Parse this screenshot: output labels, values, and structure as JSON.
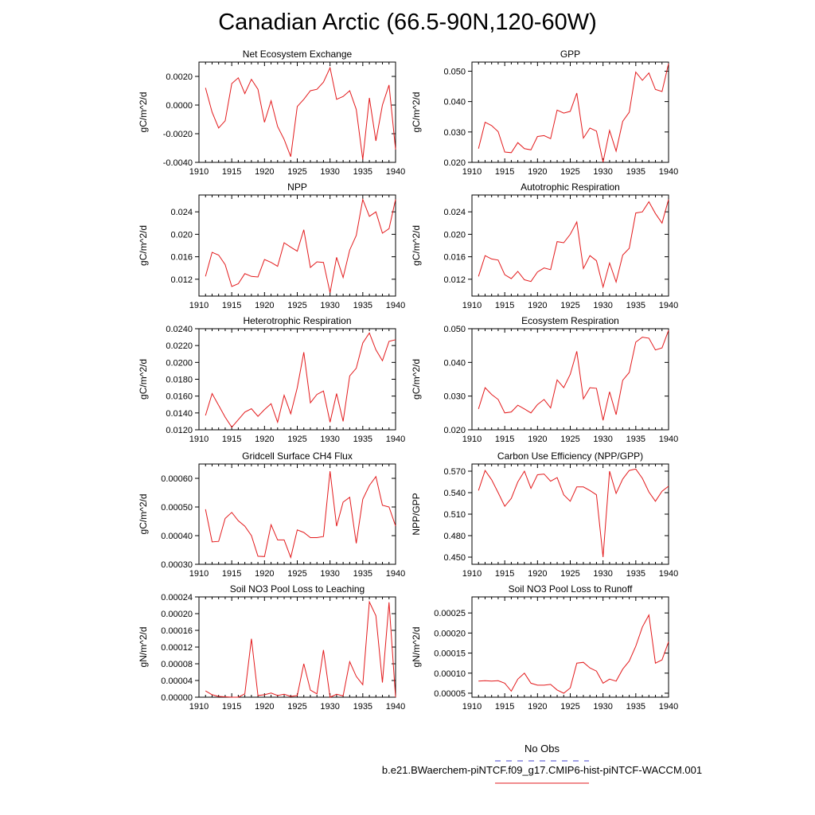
{
  "title": "Canadian Arctic (66.5-90N,120-60W)",
  "legend": {
    "items": [
      {
        "label": "No Obs",
        "color": "#4444cc",
        "style": "dashed"
      },
      {
        "label": "b.e21.BWaerchem-piNTCF.f09_g17.CMIP6-hist-piNTCF-WACCM.001",
        "color": "#e31a1c",
        "style": "solid"
      }
    ]
  },
  "chart_data": [
    {
      "type": "line",
      "title": "Net Ecosystem Exchange",
      "ylabel": "gC/m^2/d",
      "xlim": [
        1910,
        1940
      ],
      "ylim": [
        -0.004,
        0.003
      ],
      "xticks": [
        1910,
        1915,
        1920,
        1925,
        1930,
        1935,
        1940
      ],
      "yticks": [
        -0.004,
        -0.002,
        0.0,
        0.002
      ],
      "ytick_labels": [
        "-0.0040",
        "-0.0020",
        "0.0000",
        "0.0020"
      ],
      "x": [
        1911,
        1912,
        1913,
        1914,
        1915,
        1916,
        1917,
        1918,
        1919,
        1920,
        1921,
        1922,
        1923,
        1924,
        1925,
        1926,
        1927,
        1928,
        1929,
        1930,
        1931,
        1932,
        1933,
        1934,
        1935,
        1936,
        1937,
        1938,
        1939,
        1940
      ],
      "series": [
        {
          "values": [
            0.0012,
            -0.0005,
            -0.0016,
            -0.0011,
            0.0015,
            0.0019,
            0.0008,
            0.0018,
            0.0011,
            -0.0012,
            0.0003,
            -0.0015,
            -0.0024,
            -0.0036,
            -0.0001,
            0.0004,
            0.001,
            0.0011,
            0.0016,
            0.0026,
            0.0004,
            0.0006,
            0.001,
            -0.0003,
            -0.0038,
            0.0005,
            -0.0025,
            0.0,
            0.0014,
            -0.0031
          ]
        }
      ]
    },
    {
      "type": "line",
      "title": "GPP",
      "ylabel": "gC/m^2/d",
      "xlim": [
        1910,
        1940
      ],
      "ylim": [
        0.02,
        0.053
      ],
      "xticks": [
        1910,
        1915,
        1920,
        1925,
        1930,
        1935,
        1940
      ],
      "yticks": [
        0.02,
        0.03,
        0.04,
        0.05
      ],
      "ytick_labels": [
        "0.020",
        "0.030",
        "0.040",
        "0.050"
      ],
      "x": [
        1911,
        1912,
        1913,
        1914,
        1915,
        1916,
        1917,
        1918,
        1919,
        1920,
        1921,
        1922,
        1923,
        1924,
        1925,
        1926,
        1927,
        1928,
        1929,
        1930,
        1931,
        1932,
        1933,
        1934,
        1935,
        1936,
        1937,
        1938,
        1939,
        1940
      ],
      "series": [
        {
          "values": [
            0.0245,
            0.0332,
            0.0321,
            0.0301,
            0.0234,
            0.0232,
            0.0265,
            0.0245,
            0.0241,
            0.0285,
            0.0288,
            0.0278,
            0.0372,
            0.0362,
            0.0368,
            0.0428,
            0.028,
            0.0313,
            0.0303,
            0.0201,
            0.0305,
            0.0237,
            0.0335,
            0.0365,
            0.0497,
            0.047,
            0.0494,
            0.044,
            0.0433,
            0.0525
          ]
        }
      ]
    },
    {
      "type": "line",
      "title": "NPP",
      "ylabel": "gC/m^2/d",
      "xlim": [
        1910,
        1940
      ],
      "ylim": [
        0.009,
        0.027
      ],
      "xticks": [
        1910,
        1915,
        1920,
        1925,
        1930,
        1935,
        1940
      ],
      "yticks": [
        0.012,
        0.016,
        0.02,
        0.024
      ],
      "ytick_labels": [
        "0.012",
        "0.016",
        "0.020",
        "0.024"
      ],
      "x": [
        1911,
        1912,
        1913,
        1914,
        1915,
        1916,
        1917,
        1918,
        1919,
        1920,
        1921,
        1922,
        1923,
        1924,
        1925,
        1926,
        1927,
        1928,
        1929,
        1930,
        1931,
        1932,
        1933,
        1934,
        1935,
        1936,
        1937,
        1938,
        1939,
        1940
      ],
      "series": [
        {
          "values": [
            0.0125,
            0.0168,
            0.0163,
            0.0146,
            0.0107,
            0.0112,
            0.013,
            0.0125,
            0.0124,
            0.0155,
            0.015,
            0.0143,
            0.0185,
            0.0177,
            0.017,
            0.0208,
            0.0141,
            0.0151,
            0.015,
            0.0096,
            0.0159,
            0.0123,
            0.0172,
            0.0198,
            0.0262,
            0.0232,
            0.024,
            0.0202,
            0.021,
            0.0262
          ]
        }
      ]
    },
    {
      "type": "line",
      "title": "Autotrophic Respiration",
      "ylabel": "gC/m^2/d",
      "xlim": [
        1910,
        1940
      ],
      "ylim": [
        0.009,
        0.027
      ],
      "xticks": [
        1910,
        1915,
        1920,
        1925,
        1930,
        1935,
        1940
      ],
      "yticks": [
        0.012,
        0.016,
        0.02,
        0.024
      ],
      "ytick_labels": [
        "0.012",
        "0.016",
        "0.020",
        "0.024"
      ],
      "x": [
        1911,
        1912,
        1913,
        1914,
        1915,
        1916,
        1917,
        1918,
        1919,
        1920,
        1921,
        1922,
        1923,
        1924,
        1925,
        1926,
        1927,
        1928,
        1929,
        1930,
        1931,
        1932,
        1933,
        1934,
        1935,
        1936,
        1937,
        1938,
        1939,
        1940
      ],
      "series": [
        {
          "values": [
            0.0125,
            0.0162,
            0.0156,
            0.0154,
            0.0128,
            0.0121,
            0.0134,
            0.0119,
            0.0116,
            0.0133,
            0.014,
            0.0137,
            0.0187,
            0.0185,
            0.02,
            0.0222,
            0.0139,
            0.0162,
            0.0153,
            0.0106,
            0.0149,
            0.0115,
            0.0163,
            0.0175,
            0.0238,
            0.024,
            0.0258,
            0.0237,
            0.022,
            0.0262
          ]
        }
      ]
    },
    {
      "type": "line",
      "title": "Heterotrophic Respiration",
      "ylabel": "gC/m^2/d",
      "xlim": [
        1910,
        1940
      ],
      "ylim": [
        0.012,
        0.024
      ],
      "xticks": [
        1910,
        1915,
        1920,
        1925,
        1930,
        1935,
        1940
      ],
      "yticks": [
        0.012,
        0.014,
        0.016,
        0.018,
        0.02,
        0.022,
        0.024
      ],
      "ytick_labels": [
        "0.0120",
        "0.0140",
        "0.0160",
        "0.0180",
        "0.0200",
        "0.0220",
        "0.0240"
      ],
      "x": [
        1911,
        1912,
        1913,
        1914,
        1915,
        1916,
        1917,
        1918,
        1919,
        1920,
        1921,
        1922,
        1923,
        1924,
        1925,
        1926,
        1927,
        1928,
        1929,
        1930,
        1931,
        1932,
        1933,
        1934,
        1935,
        1936,
        1937,
        1938,
        1939,
        1940
      ],
      "series": [
        {
          "values": [
            0.0137,
            0.0163,
            0.0149,
            0.0135,
            0.0123,
            0.0132,
            0.0141,
            0.0145,
            0.0136,
            0.0144,
            0.0151,
            0.0129,
            0.0161,
            0.0139,
            0.017,
            0.0212,
            0.0152,
            0.0162,
            0.0166,
            0.0129,
            0.0163,
            0.013,
            0.0184,
            0.0193,
            0.0223,
            0.0235,
            0.0215,
            0.0202,
            0.0225,
            0.0227
          ]
        }
      ]
    },
    {
      "type": "line",
      "title": "Ecosystem Respiration",
      "ylabel": "gC/m^2/d",
      "xlim": [
        1910,
        1940
      ],
      "ylim": [
        0.02,
        0.05
      ],
      "xticks": [
        1910,
        1915,
        1920,
        1925,
        1930,
        1935,
        1940
      ],
      "yticks": [
        0.02,
        0.03,
        0.04,
        0.05
      ],
      "ytick_labels": [
        "0.020",
        "0.030",
        "0.040",
        "0.050"
      ],
      "x": [
        1911,
        1912,
        1913,
        1914,
        1915,
        1916,
        1917,
        1918,
        1919,
        1920,
        1921,
        1922,
        1923,
        1924,
        1925,
        1926,
        1927,
        1928,
        1929,
        1930,
        1931,
        1932,
        1933,
        1934,
        1935,
        1936,
        1937,
        1938,
        1939,
        1940
      ],
      "series": [
        {
          "values": [
            0.0262,
            0.0325,
            0.0305,
            0.029,
            0.025,
            0.0253,
            0.0273,
            0.0262,
            0.025,
            0.0275,
            0.029,
            0.0265,
            0.0348,
            0.0325,
            0.0365,
            0.0433,
            0.0292,
            0.0325,
            0.0323,
            0.0228,
            0.0313,
            0.0245,
            0.0347,
            0.037,
            0.046,
            0.0475,
            0.0472,
            0.0437,
            0.0443,
            0.0495
          ]
        }
      ]
    },
    {
      "type": "line",
      "title": "Gridcell Surface CH4 Flux",
      "ylabel": "gC/m^2/d",
      "xlim": [
        1910,
        1940
      ],
      "ylim": [
        0.0003,
        0.00065
      ],
      "xticks": [
        1910,
        1915,
        1920,
        1925,
        1930,
        1935,
        1940
      ],
      "yticks": [
        0.0003,
        0.0004,
        0.0005,
        0.0006
      ],
      "ytick_labels": [
        "0.00030",
        "0.00040",
        "0.00050",
        "0.00060"
      ],
      "x": [
        1911,
        1912,
        1913,
        1914,
        1915,
        1916,
        1917,
        1918,
        1919,
        1920,
        1921,
        1922,
        1923,
        1924,
        1925,
        1926,
        1927,
        1928,
        1929,
        1930,
        1931,
        1932,
        1933,
        1934,
        1935,
        1936,
        1937,
        1938,
        1939,
        1940
      ],
      "series": [
        {
          "values": [
            0.000492,
            0.000378,
            0.00038,
            0.00046,
            0.000481,
            0.000452,
            0.000433,
            0.0004,
            0.000328,
            0.000327,
            0.000438,
            0.000385,
            0.000385,
            0.000324,
            0.00042,
            0.000411,
            0.000393,
            0.000393,
            0.000397,
            0.000625,
            0.000433,
            0.000517,
            0.000534,
            0.000373,
            0.000527,
            0.000575,
            0.000606,
            0.000506,
            0.0005,
            0.000434
          ]
        }
      ]
    },
    {
      "type": "line",
      "title": "Carbon Use Efficiency (NPP/GPP)",
      "ylabel": "NPP/GPP",
      "xlim": [
        1910,
        1940
      ],
      "ylim": [
        0.44,
        0.58
      ],
      "xticks": [
        1910,
        1915,
        1920,
        1925,
        1930,
        1935,
        1940
      ],
      "yticks": [
        0.45,
        0.48,
        0.51,
        0.54,
        0.57
      ],
      "ytick_labels": [
        "0.450",
        "0.480",
        "0.510",
        "0.540",
        "0.570"
      ],
      "x": [
        1911,
        1912,
        1913,
        1914,
        1915,
        1916,
        1917,
        1918,
        1919,
        1920,
        1921,
        1922,
        1923,
        1924,
        1925,
        1926,
        1927,
        1928,
        1929,
        1930,
        1931,
        1932,
        1933,
        1934,
        1935,
        1936,
        1937,
        1938,
        1939,
        1940
      ],
      "series": [
        {
          "values": [
            0.543,
            0.571,
            0.558,
            0.54,
            0.521,
            0.532,
            0.555,
            0.57,
            0.546,
            0.565,
            0.566,
            0.556,
            0.561,
            0.537,
            0.528,
            0.548,
            0.548,
            0.543,
            0.537,
            0.45,
            0.57,
            0.539,
            0.559,
            0.571,
            0.573,
            0.56,
            0.541,
            0.528,
            0.542,
            0.549
          ]
        }
      ]
    },
    {
      "type": "line",
      "title": "Soil NO3 Pool Loss to Leaching",
      "ylabel": "gN/m^2/d",
      "xlim": [
        1910,
        1940
      ],
      "ylim": [
        0.0,
        0.00024
      ],
      "xticks": [
        1910,
        1915,
        1920,
        1925,
        1930,
        1935,
        1940
      ],
      "yticks": [
        0.0,
        4e-05,
        8e-05,
        0.00012,
        0.00016,
        0.0002,
        0.00024
      ],
      "ytick_labels": [
        "0.00000",
        "0.00004",
        "0.00008",
        "0.00012",
        "0.00016",
        "0.00020",
        "0.00024"
      ],
      "x": [
        1911,
        1912,
        1913,
        1914,
        1915,
        1916,
        1917,
        1918,
        1919,
        1920,
        1921,
        1922,
        1923,
        1924,
        1925,
        1926,
        1927,
        1928,
        1929,
        1930,
        1931,
        1932,
        1933,
        1934,
        1935,
        1936,
        1937,
        1938,
        1939,
        1940
      ],
      "series": [
        {
          "values": [
            1.5e-05,
            6e-06,
            2e-06,
            1e-06,
            0.0,
            0.0,
            8e-06,
            0.00014,
            4e-06,
            6e-06,
            1e-05,
            4e-06,
            7e-06,
            2e-06,
            4e-06,
            8e-05,
            1.7e-05,
            8e-06,
            0.000113,
            0.0,
            7e-06,
            3e-06,
            8.5e-05,
            5e-05,
            3e-05,
            0.000228,
            0.000195,
            3.5e-05,
            0.000227,
            0.0
          ]
        }
      ]
    },
    {
      "type": "line",
      "title": "Soil NO3 Pool Loss to Runoff",
      "ylabel": "gN/m^2/d",
      "xlim": [
        1910,
        1940
      ],
      "ylim": [
        4e-05,
        0.00029
      ],
      "xticks": [
        1910,
        1915,
        1920,
        1925,
        1930,
        1935,
        1940
      ],
      "yticks": [
        5e-05,
        0.0001,
        0.00015,
        0.0002,
        0.00025
      ],
      "ytick_labels": [
        "0.00005",
        "0.00010",
        "0.00015",
        "0.00020",
        "0.00025"
      ],
      "x": [
        1911,
        1912,
        1913,
        1914,
        1915,
        1916,
        1917,
        1918,
        1919,
        1920,
        1921,
        1922,
        1923,
        1924,
        1925,
        1926,
        1927,
        1928,
        1929,
        1930,
        1931,
        1932,
        1933,
        1934,
        1935,
        1936,
        1937,
        1938,
        1939,
        1940
      ],
      "series": [
        {
          "values": [
            8e-05,
            8.1e-05,
            8e-05,
            8.1e-05,
            7.5e-05,
            5.5e-05,
            8.5e-05,
            0.0001,
            7.5e-05,
            7e-05,
            7e-05,
            7.2e-05,
            5.8e-05,
            5e-05,
            6.3e-05,
            0.000125,
            0.000127,
            0.000113,
            0.000105,
            7.5e-05,
            8.5e-05,
            8e-05,
            0.00011,
            0.00013,
            0.000167,
            0.000215,
            0.000245,
            0.000125,
            0.000133,
            0.000178
          ]
        }
      ]
    }
  ]
}
